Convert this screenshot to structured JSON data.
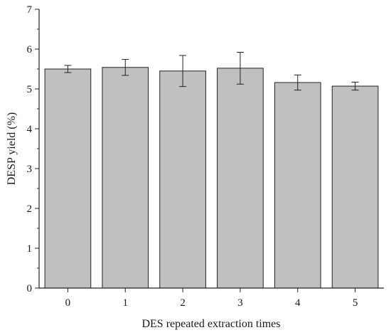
{
  "chart_data": {
    "type": "bar",
    "title": "",
    "xlabel": "DES repeated extraction times",
    "ylabel": "DESP yield (%)",
    "categories": [
      "0",
      "1",
      "2",
      "3",
      "4",
      "5"
    ],
    "values": [
      5.5,
      5.54,
      5.45,
      5.52,
      5.16,
      5.07
    ],
    "errors": [
      0.09,
      0.2,
      0.39,
      0.4,
      0.19,
      0.1
    ],
    "ylim": [
      0,
      7
    ],
    "yticks": [
      "0",
      "1",
      "2",
      "3",
      "4",
      "5",
      "6",
      "7"
    ],
    "grid": false,
    "legend": "none",
    "bar_color": "#c0c0c0",
    "bar_edge_color": "#222222"
  }
}
